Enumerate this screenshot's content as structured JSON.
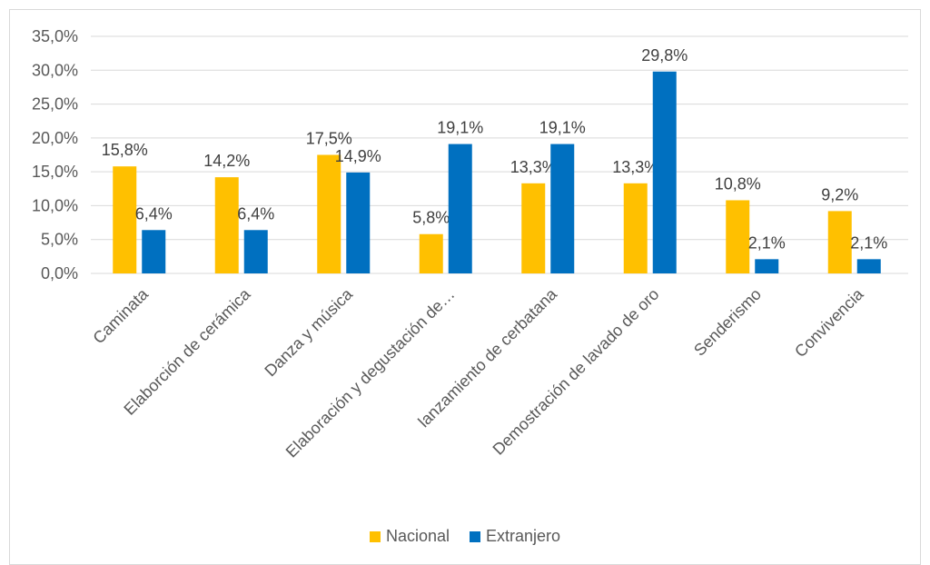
{
  "chart_data": {
    "type": "bar",
    "categories": [
      "Caminata",
      "Elaborción de cerámica",
      "Danza y música",
      "Elaboración y degustación de…",
      "lanzamiento de cerbatana",
      "Demostración de lavado de oro",
      "Senderismo",
      "Convivencia"
    ],
    "series": [
      {
        "name": "Nacional",
        "color": "#FFC000",
        "values": [
          15.8,
          14.2,
          17.5,
          5.8,
          13.3,
          13.3,
          10.8,
          9.2
        ],
        "labels": [
          "15,8%",
          "14,2%",
          "17,5%",
          "5,8%",
          "13,3%",
          "13,3%",
          "10,8%",
          "9,2%"
        ]
      },
      {
        "name": "Extranjero",
        "color": "#0070C0",
        "values": [
          6.4,
          6.4,
          14.9,
          19.1,
          19.1,
          29.8,
          2.1,
          2.1
        ],
        "labels": [
          "6,4%",
          "6,4%",
          "14,9%",
          "19,1%",
          "19,1%",
          "29,8%",
          "2,1%",
          "2,1%"
        ]
      }
    ],
    "ylim": [
      0,
      35
    ],
    "yticks": [
      "0,0%",
      "5,0%",
      "10,0%",
      "15,0%",
      "20,0%",
      "25,0%",
      "30,0%",
      "35,0%"
    ],
    "grid": true,
    "legend_position": "bottom",
    "gridline_color": "#D9D9D9"
  }
}
